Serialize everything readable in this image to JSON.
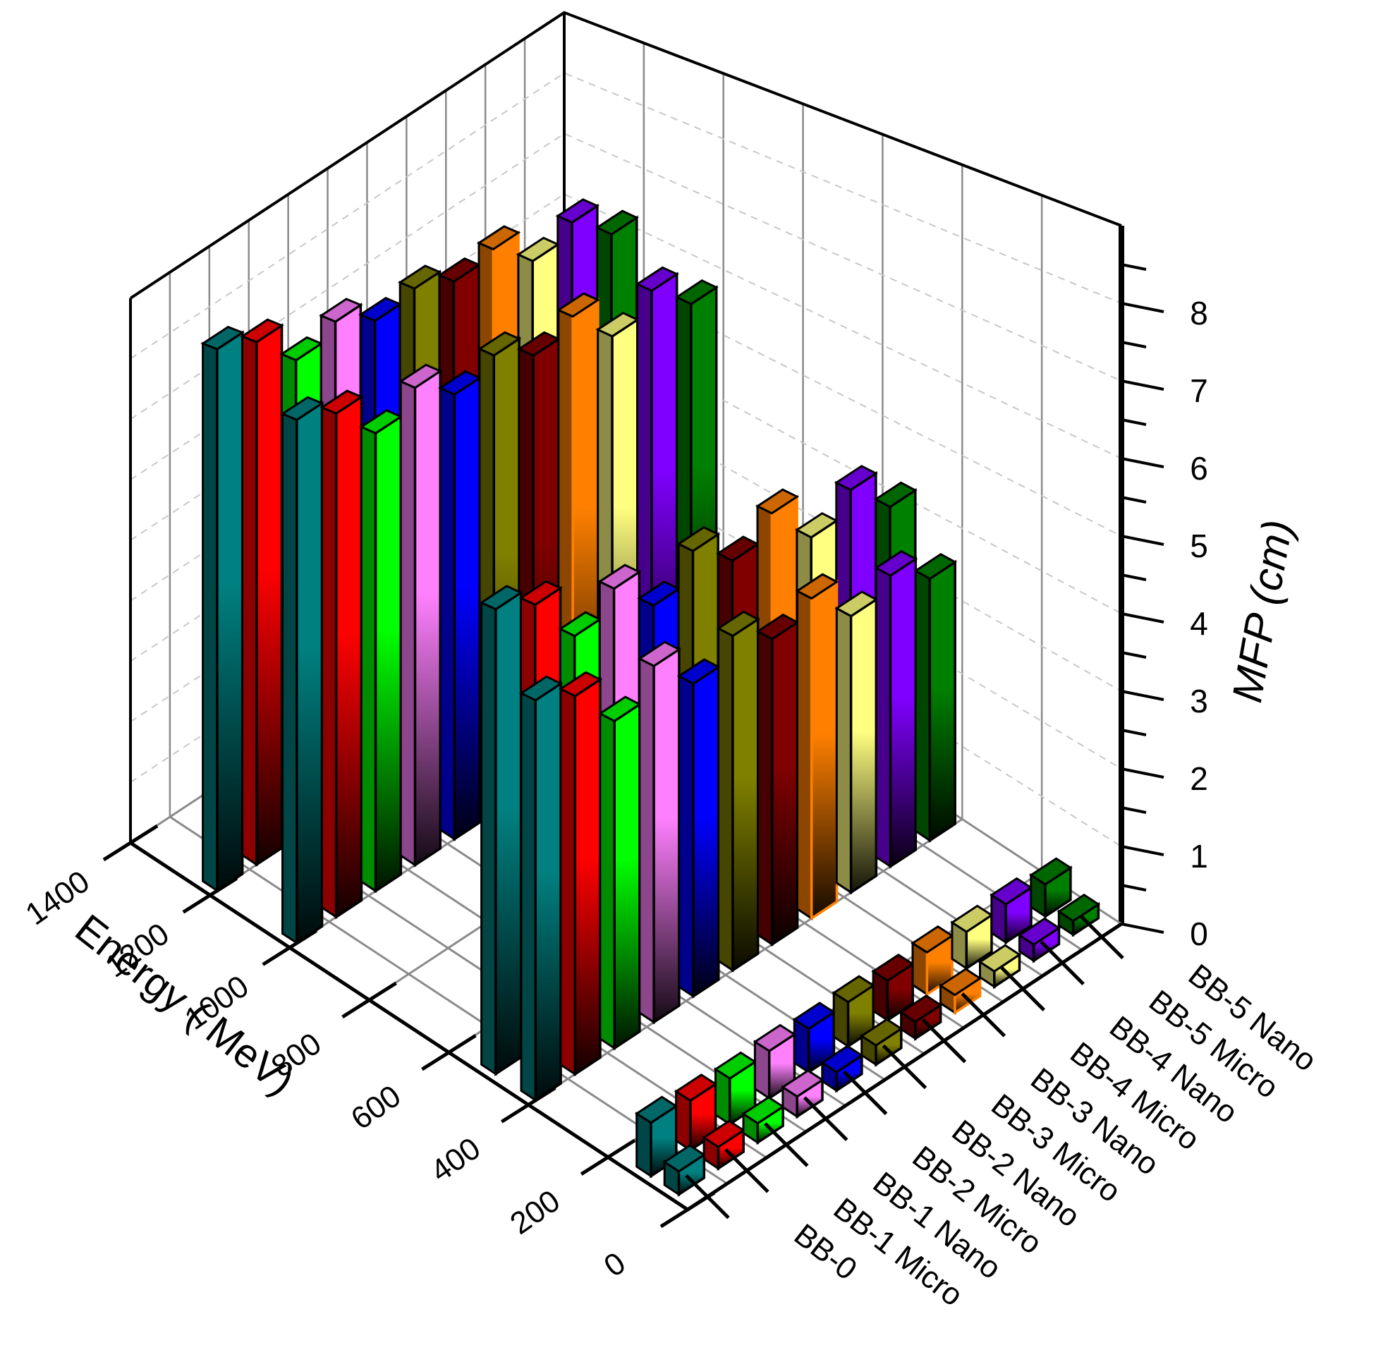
{
  "chart_data": {
    "type": "bar",
    "subtype": "3d-bar",
    "title": "",
    "xlabel": "Energy ( MeV)",
    "ylabel": "",
    "zlabel": "MFP (cm)",
    "energy_ticks": [
      "0",
      "200",
      "400",
      "600",
      "800",
      "1000",
      "1200",
      "1400"
    ],
    "mfp_ticks": [
      "0",
      "1",
      "2",
      "3",
      "4",
      "5",
      "6",
      "7",
      "8"
    ],
    "zlim": [
      0,
      9
    ],
    "xlim": [
      0,
      1400
    ],
    "grid": true,
    "categories": [
      "BB-0",
      "BB-1 Micro",
      "BB-1 Nano",
      "BB-2 Micro",
      "BB-2 Nano",
      "BB-3 Micro",
      "BB-3 Nano",
      "BB-4 Micro",
      "BB-4 Nano",
      "BB-5 Micro",
      "BB-5 Nano"
    ],
    "colors": [
      "#008080",
      "#ff0000",
      "#00ff00",
      "#ff80ff",
      "#0000ff",
      "#808000",
      "#800000",
      "#ff8000",
      "#ffff80",
      "#8000ff",
      "#008000"
    ],
    "energies": [
      0.5,
      1,
      400,
      500,
      1000,
      1200
    ],
    "series": [
      {
        "name": "BB-0",
        "values": [
          0.3,
          0.7,
          5.5,
          6.5,
          8.0,
          8.6
        ]
      },
      {
        "name": "BB-1 Micro",
        "values": [
          0.28,
          0.65,
          5.2,
          6.2,
          7.7,
          8.3
        ]
      },
      {
        "name": "BB-1 Nano",
        "values": [
          0.25,
          0.6,
          4.5,
          5.4,
          7.0,
          7.6
        ]
      },
      {
        "name": "BB-2 Micro",
        "values": [
          0.26,
          0.62,
          4.9,
          5.7,
          7.3,
          7.8
        ]
      },
      {
        "name": "BB-2 Nano",
        "values": [
          0.24,
          0.57,
          4.3,
          5.1,
          6.8,
          7.4
        ]
      },
      {
        "name": "BB-3 Micro",
        "values": [
          0.25,
          0.58,
          4.6,
          5.5,
          7.0,
          7.5
        ]
      },
      {
        "name": "BB-3 Nano",
        "values": [
          0.22,
          0.52,
          4.2,
          5.0,
          6.6,
          7.2
        ]
      },
      {
        "name": "BB-4 Micro",
        "values": [
          0.23,
          0.55,
          4.4,
          5.3,
          6.8,
          7.3
        ]
      },
      {
        "name": "BB-4 Nano",
        "values": [
          0.2,
          0.48,
          3.8,
          4.6,
          6.1,
          6.7
        ]
      },
      {
        "name": "BB-5 Micro",
        "values": [
          0.21,
          0.5,
          4.0,
          4.9,
          6.4,
          6.9
        ]
      },
      {
        "name": "BB-5 Nano",
        "values": [
          0.18,
          0.42,
          3.6,
          4.3,
          5.8,
          6.3
        ]
      }
    ]
  }
}
